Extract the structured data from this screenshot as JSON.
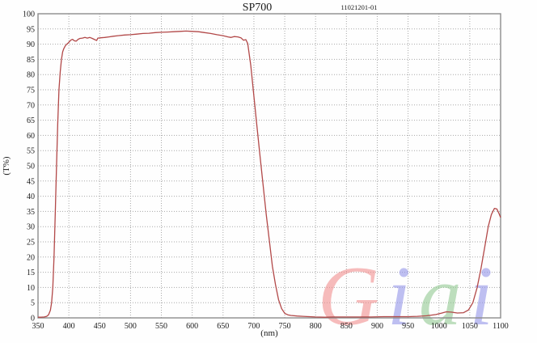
{
  "chart_data": {
    "type": "line",
    "title": "SP700",
    "doc_number": "11021201-01",
    "xlabel": "(nm)",
    "ylabel": "(T%)",
    "xlim": [
      350,
      1100
    ],
    "ylim": [
      0,
      100
    ],
    "x_tick_step": 50,
    "y_tick_step": 5,
    "grid": "dotted-both-axes",
    "legend": "none",
    "line_color": "#b24848",
    "frame_color": "#8c8c8c",
    "grid_color": "#a8a8a8",
    "series": [
      {
        "name": "transmission-curve",
        "points": [
          [
            350,
            0.2
          ],
          [
            355,
            0.2
          ],
          [
            360,
            0.3
          ],
          [
            364,
            0.5
          ],
          [
            367,
            1.0
          ],
          [
            370,
            2.5
          ],
          [
            372,
            5
          ],
          [
            374,
            10
          ],
          [
            376,
            20
          ],
          [
            378,
            35
          ],
          [
            380,
            50
          ],
          [
            382,
            64
          ],
          [
            384,
            75
          ],
          [
            386,
            81
          ],
          [
            388,
            85
          ],
          [
            390,
            87.5
          ],
          [
            392,
            88.6
          ],
          [
            394,
            89.4
          ],
          [
            396,
            89.9
          ],
          [
            398,
            90.2
          ],
          [
            400,
            90.6
          ],
          [
            403,
            91.3
          ],
          [
            406,
            91.6
          ],
          [
            409,
            91.1
          ],
          [
            412,
            91.0
          ],
          [
            415,
            91.6
          ],
          [
            418,
            91.9
          ],
          [
            422,
            92.0
          ],
          [
            426,
            92.2
          ],
          [
            430,
            92.0
          ],
          [
            434,
            92.2
          ],
          [
            438,
            91.9
          ],
          [
            442,
            91.5
          ],
          [
            445,
            91.2
          ],
          [
            447,
            92.0
          ],
          [
            452,
            92.1
          ],
          [
            458,
            92.2
          ],
          [
            465,
            92.4
          ],
          [
            472,
            92.6
          ],
          [
            480,
            92.8
          ],
          [
            490,
            93.0
          ],
          [
            500,
            93.1
          ],
          [
            510,
            93.3
          ],
          [
            520,
            93.5
          ],
          [
            530,
            93.6
          ],
          [
            540,
            93.8
          ],
          [
            550,
            93.9
          ],
          [
            560,
            94.0
          ],
          [
            570,
            94.1
          ],
          [
            580,
            94.2
          ],
          [
            590,
            94.3
          ],
          [
            600,
            94.2
          ],
          [
            610,
            94.1
          ],
          [
            620,
            93.8
          ],
          [
            630,
            93.5
          ],
          [
            640,
            93.1
          ],
          [
            650,
            92.8
          ],
          [
            658,
            92.4
          ],
          [
            663,
            92.2
          ],
          [
            668,
            92.5
          ],
          [
            674,
            92.4
          ],
          [
            679,
            92.1
          ],
          [
            683,
            91.3
          ],
          [
            687,
            91.5
          ],
          [
            690,
            90.2
          ],
          [
            695,
            83
          ],
          [
            700,
            73
          ],
          [
            705,
            63
          ],
          [
            710,
            53
          ],
          [
            715,
            43.5
          ],
          [
            720,
            34
          ],
          [
            725,
            25.5
          ],
          [
            730,
            17
          ],
          [
            735,
            11
          ],
          [
            740,
            6
          ],
          [
            745,
            3
          ],
          [
            750,
            1.5
          ],
          [
            755,
            1.0
          ],
          [
            760,
            0.8
          ],
          [
            770,
            0.6
          ],
          [
            780,
            0.5
          ],
          [
            790,
            0.4
          ],
          [
            800,
            0.3
          ],
          [
            815,
            0.2
          ],
          [
            830,
            0.3
          ],
          [
            850,
            0.3
          ],
          [
            870,
            0.3
          ],
          [
            890,
            0.3
          ],
          [
            910,
            0.4
          ],
          [
            930,
            0.4
          ],
          [
            950,
            0.4
          ],
          [
            965,
            0.5
          ],
          [
            980,
            0.7
          ],
          [
            995,
            1.1
          ],
          [
            1005,
            1.6
          ],
          [
            1012,
            2.0
          ],
          [
            1020,
            1.9
          ],
          [
            1030,
            1.6
          ],
          [
            1040,
            1.7
          ],
          [
            1048,
            2.6
          ],
          [
            1055,
            5
          ],
          [
            1062,
            10
          ],
          [
            1068,
            16
          ],
          [
            1074,
            23
          ],
          [
            1080,
            30
          ],
          [
            1085,
            34
          ],
          [
            1090,
            36
          ],
          [
            1094,
            35.8
          ],
          [
            1097,
            34.5
          ],
          [
            1100,
            33
          ]
        ]
      }
    ]
  },
  "watermark": {
    "text": "Giai",
    "opacity": 0.6,
    "letters": [
      {
        "char": "G",
        "color": "#f19090"
      },
      {
        "char": "i",
        "color": "#9596ea"
      },
      {
        "char": "a",
        "color": "#92c992"
      },
      {
        "char": "i",
        "color": "#9596ea"
      }
    ]
  }
}
